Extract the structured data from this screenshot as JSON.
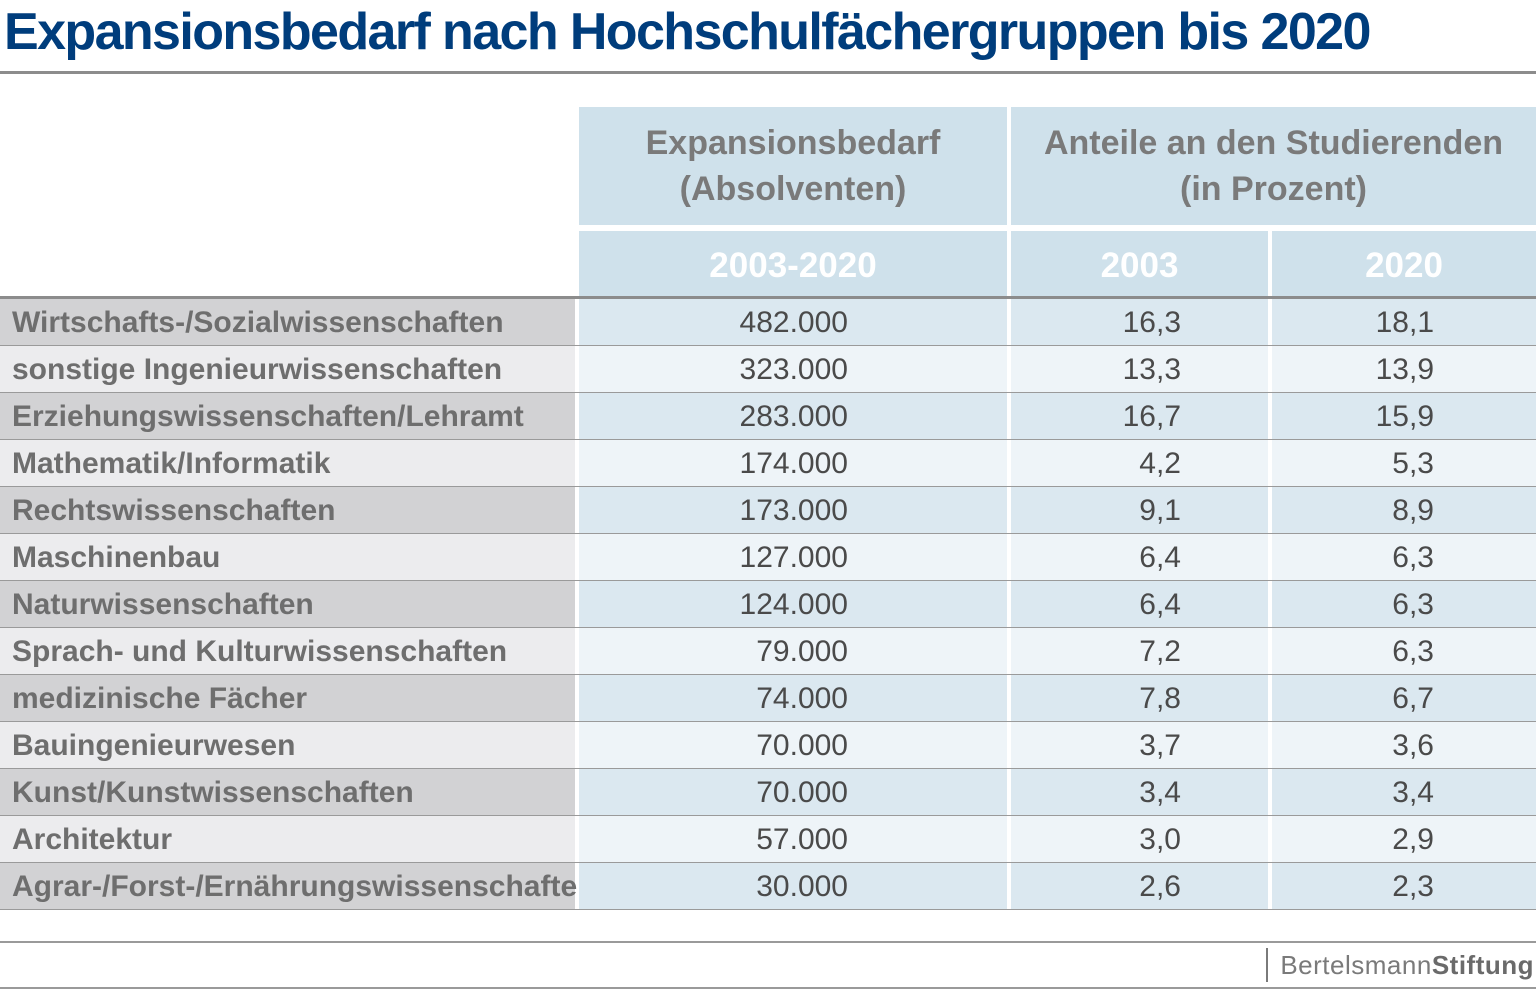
{
  "title": "Expansionsbedarf nach Hochschulfächergruppen bis 2020",
  "colors": {
    "title": "#003d7c",
    "header_bg": "#cfe1eb",
    "row_odd_bg": "#dbe8f0",
    "row_even_bg": "#eef4f8",
    "label_odd_bg": "#d2d2d4",
    "label_even_bg": "#ececee"
  },
  "headers": {
    "group1_line1": "Expansionsbedarf",
    "group1_line2": "(Absolventen)",
    "group2_line1": "Anteile an den Studierenden",
    "group2_line2": "(in Prozent)",
    "col1": "2003-2020",
    "col2": "2003",
    "col3": "2020"
  },
  "rows": [
    [
      "Wirtschafts-/Sozialwissenschaften",
      "482.000",
      "16,3",
      "18,1"
    ],
    [
      "sonstige Ingenieurwissenschaften",
      "323.000",
      "13,3",
      "13,9"
    ],
    [
      "Erziehungswissenschaften/Lehramt",
      "283.000",
      "16,7",
      "15,9"
    ],
    [
      "Mathematik/Informatik",
      "174.000",
      "4,2",
      "5,3"
    ],
    [
      "Rechtswissenschaften",
      "173.000",
      "9,1",
      "8,9"
    ],
    [
      "Maschinenbau",
      "127.000",
      "6,4",
      "6,3"
    ],
    [
      "Naturwissenschaften",
      "124.000",
      "6,4",
      "6,3"
    ],
    [
      "Sprach- und Kulturwissenschaften",
      "79.000",
      "7,2",
      "6,3"
    ],
    [
      "medizinische Fächer",
      "74.000",
      "7,8",
      "6,7"
    ],
    [
      "Bauingenieurwesen",
      "70.000",
      "3,7",
      "3,6"
    ],
    [
      "Kunst/Kunstwissenschaften",
      "70.000",
      "3,4",
      "3,4"
    ],
    [
      "Architektur",
      "57.000",
      "3,0",
      "2,9"
    ],
    [
      "Agrar-/Forst-/Ernährungswissenschaften",
      "30.000",
      "2,6",
      "2,3"
    ]
  ],
  "logo": {
    "part1": "Bertelsmann",
    "part2": "Stiftung"
  },
  "chart_data": {
    "type": "table",
    "title": "Expansionsbedarf nach Hochschulfächergruppen bis 2020",
    "columns": [
      "",
      "Expansionsbedarf (Absolventen) 2003-2020",
      "Anteile an den Studierenden (in Prozent) 2003",
      "Anteile an den Studierenden (in Prozent) 2020"
    ],
    "categories": [
      "Wirtschafts-/Sozialwissenschaften",
      "sonstige Ingenieurwissenschaften",
      "Erziehungswissenschaften/Lehramt",
      "Mathematik/Informatik",
      "Rechtswissenschaften",
      "Maschinenbau",
      "Naturwissenschaften",
      "Sprach- und Kulturwissenschaften",
      "medizinische Fächer",
      "Bauingenieurwesen",
      "Kunst/Kunstwissenschaften",
      "Architektur",
      "Agrar-/Forst-/Ernährungswissenschaften"
    ],
    "series": [
      {
        "name": "Expansionsbedarf (Absolventen) 2003-2020",
        "values": [
          482000,
          323000,
          283000,
          174000,
          173000,
          127000,
          124000,
          79000,
          74000,
          70000,
          70000,
          57000,
          30000
        ]
      },
      {
        "name": "Anteile an den Studierenden (in Prozent) 2003",
        "values": [
          16.3,
          13.3,
          16.7,
          4.2,
          9.1,
          6.4,
          6.4,
          7.2,
          7.8,
          3.7,
          3.4,
          3.0,
          2.6
        ]
      },
      {
        "name": "Anteile an den Studierenden (in Prozent) 2020",
        "values": [
          18.1,
          13.9,
          15.9,
          5.3,
          8.9,
          6.3,
          6.3,
          6.3,
          6.7,
          3.6,
          3.4,
          2.9,
          2.3
        ]
      }
    ]
  }
}
